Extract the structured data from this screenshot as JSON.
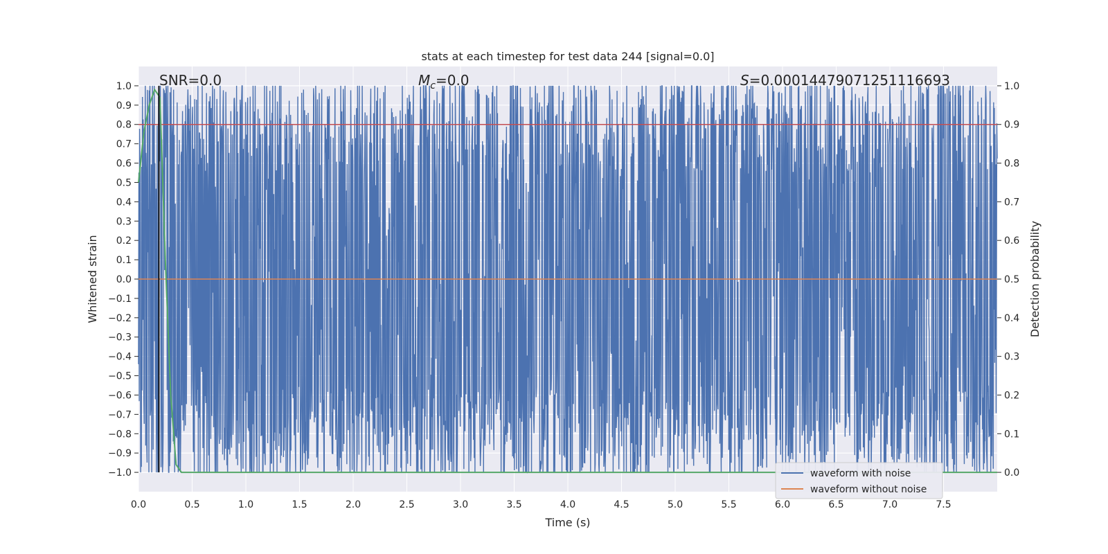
{
  "chart_data": {
    "type": "line",
    "title": "stats at each timestep for test data 244 [signal=0.0]",
    "xlabel": "Time (s)",
    "ylabel": "Whitened strain",
    "y2label": "Detection probability",
    "xlim": [
      0.0,
      8.0
    ],
    "ylim": [
      -1.1,
      1.1
    ],
    "y2lim": [
      -0.05,
      1.05
    ],
    "xticks": [
      "0.0",
      "0.5",
      "1.0",
      "1.5",
      "2.0",
      "2.5",
      "3.0",
      "3.5",
      "4.0",
      "4.5",
      "5.0",
      "5.5",
      "6.0",
      "6.5",
      "7.0",
      "7.5"
    ],
    "yticks": [
      "1.0",
      "0.9",
      "0.8",
      "0.7",
      "0.6",
      "0.5",
      "0.4",
      "0.3",
      "0.2",
      "0.1",
      "0.0",
      "−0.1",
      "−0.2",
      "−0.3",
      "−0.4",
      "−0.5",
      "−0.6",
      "−0.7",
      "−0.8",
      "−0.9",
      "−1.0"
    ],
    "y2ticks": [
      "1.0",
      "0.9",
      "0.8",
      "0.7",
      "0.6",
      "0.5",
      "0.4",
      "0.3",
      "0.2",
      "0.1",
      "0.0"
    ],
    "grid": true,
    "legend_position": "lower-right",
    "annotations": {
      "snr": "SNR=0.0",
      "mc_symbol": "M",
      "mc_sub": "c",
      "mc_value": "=0.0",
      "s_symbol": "S",
      "s_value": "=0.00014479071251116693"
    },
    "vline_x": 0.19,
    "threshold_y2": 0.9,
    "series": [
      {
        "name": "waveform with noise",
        "color": "#4c72b0",
        "kind": "noise",
        "amplitude": 1.0,
        "samples": 2400
      },
      {
        "name": "waveform without noise",
        "color": "#dd8452",
        "x": [
          0.0,
          8.0
        ],
        "y": [
          0.0,
          0.0
        ]
      },
      {
        "color": "#55a868",
        "axis": "right",
        "x": [
          0.0,
          0.05,
          0.1,
          0.15,
          0.2,
          0.25,
          0.3,
          0.35,
          0.4,
          8.0
        ],
        "y": [
          0.75,
          0.88,
          0.95,
          0.99,
          0.97,
          0.55,
          0.2,
          0.02,
          0.0,
          0.0
        ]
      }
    ],
    "colors": {
      "background": "#eaeaf2",
      "grid": "#ffffff",
      "threshold": "#c44e52",
      "vline": "#000000"
    }
  }
}
